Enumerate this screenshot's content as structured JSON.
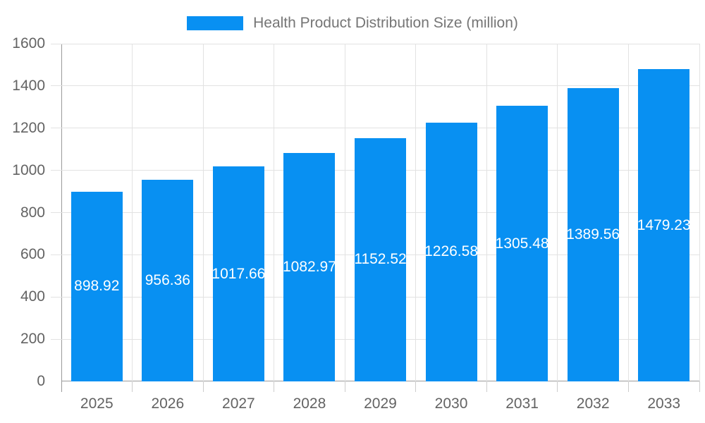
{
  "legend": {
    "label": "Health Product Distribution Size (million)",
    "swatch_color": "#0890f2"
  },
  "chart_data": {
    "type": "bar",
    "title": "Health Product Distribution Size (million)",
    "series_name": "Health Product Distribution Size (million)",
    "categories": [
      "2025",
      "2026",
      "2027",
      "2028",
      "2029",
      "2030",
      "2031",
      "2032",
      "2033"
    ],
    "values": [
      898.92,
      956.36,
      1017.66,
      1082.97,
      1152.52,
      1226.58,
      1305.48,
      1389.56,
      1479.23
    ],
    "value_labels": [
      "898.92",
      "956.36",
      "1017.66",
      "1082.97",
      "1152.52",
      "1226.58",
      "1305.48",
      "1389.56",
      "1479.23"
    ],
    "xlabel": "",
    "ylabel": "",
    "ylim": [
      0,
      1600
    ],
    "yticks": [
      0,
      200,
      400,
      600,
      800,
      1000,
      1200,
      1400,
      1600
    ],
    "grid": true,
    "legend_position": "top-center",
    "bar_color": "#0890f2",
    "value_label_color": "#ffffff",
    "axis_text_color": "#636363",
    "gridline_color": "#e2e2e2",
    "axis_line_color": "#9a9a9a"
  }
}
